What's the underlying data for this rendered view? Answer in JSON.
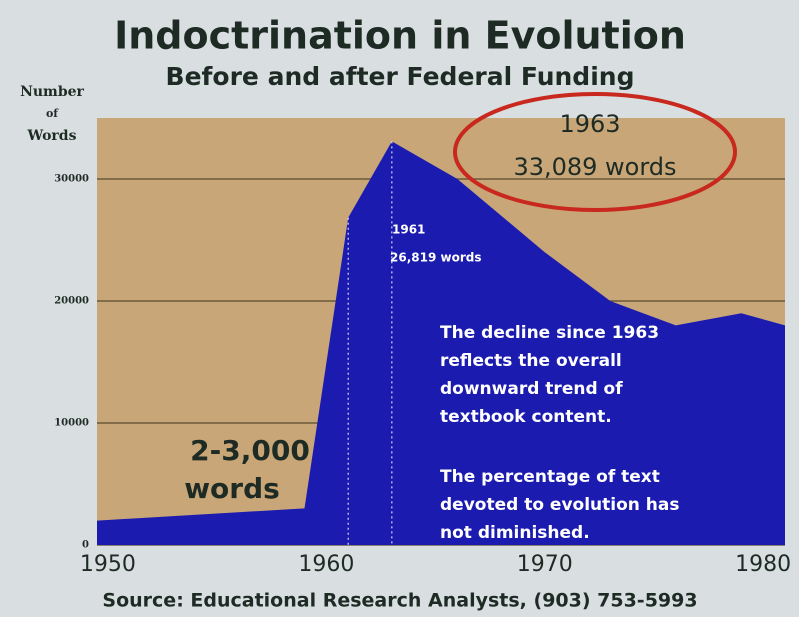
{
  "chart_data": {
    "type": "area",
    "title": "Indoctrination in Evolution",
    "subtitle": "Before and after Federal Funding",
    "y_label": [
      "Number",
      "of",
      "Words"
    ],
    "x": [
      1949.5,
      1959,
      1961,
      1963,
      1966,
      1970,
      1973,
      1976,
      1979,
      1981
    ],
    "values": [
      2000,
      3000,
      26819,
      33089,
      30000,
      24000,
      20000,
      18000,
      19000,
      18000
    ],
    "color": "#1b1bb0",
    "xlim": [
      1949.5,
      1981
    ],
    "xticks": [
      1950,
      1960,
      1970,
      1980
    ],
    "ylim": [
      0,
      35000
    ],
    "yticks": [
      0,
      10000,
      20000,
      30000
    ],
    "grid": true,
    "annotations": [
      "1963",
      "33,089 words",
      "1961",
      "26,819 words",
      "2-3,000",
      "words",
      "The decline since 1963",
      "reflects the overall",
      "downward trend of",
      "textbook content.",
      "The percentage of text",
      "devoted to evolution has",
      "not diminished."
    ],
    "source": "Source: Educational Research Analysts, (903) 753-5993"
  }
}
